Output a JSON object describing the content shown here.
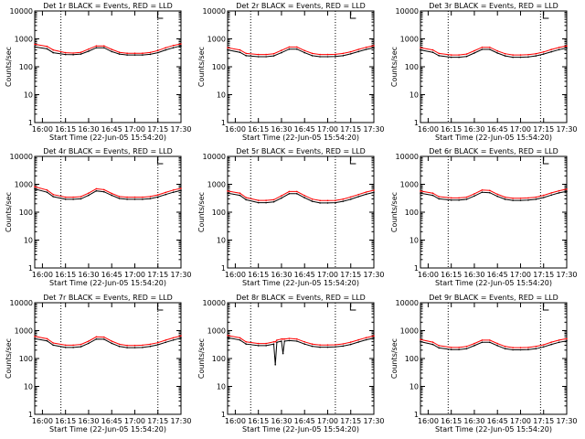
{
  "chart_data": [
    {
      "type": "line",
      "title": "Det 1r BLACK = Events, RED = LLD",
      "xlabel": "Start Time (22-Jun-05 15:54:20)",
      "ylabel": "Counts/sec",
      "xticks": [
        "16:00",
        "16:15",
        "16:30",
        "16:45",
        "17:00",
        "17:15",
        "17:30"
      ],
      "ylim": [
        1,
        10000
      ],
      "yscale": "log",
      "yticks": [
        "1",
        "10",
        "100",
        "1000",
        "10000"
      ],
      "vlines": [
        "16:12",
        "17:15"
      ],
      "x_min": [
        0,
        8,
        12,
        20,
        25,
        30,
        35,
        40,
        45,
        50,
        55,
        60,
        65,
        70,
        75,
        80,
        85,
        90,
        95
      ],
      "series": [
        {
          "name": "Events",
          "color": "#000000",
          "values": [
            520,
            440,
            320,
            275,
            270,
            285,
            360,
            480,
            480,
            350,
            285,
            265,
            265,
            265,
            280,
            320,
            400,
            480,
            560
          ]
        },
        {
          "name": "LLD",
          "color": "#ff0000",
          "values": [
            640,
            540,
            400,
            320,
            310,
            330,
            430,
            560,
            560,
            420,
            330,
            305,
            305,
            305,
            325,
            380,
            480,
            580,
            660
          ]
        }
      ]
    },
    {
      "type": "line",
      "title": "Det 2r BLACK = Events, RED = LLD",
      "xlabel": "Start Time (22-Jun-05 15:54:20)",
      "ylabel": "Counts/sec",
      "xticks": [
        "16:00",
        "16:15",
        "16:30",
        "16:45",
        "17:00",
        "17:15",
        "17:30"
      ],
      "ylim": [
        1,
        10000
      ],
      "yscale": "log",
      "yticks": [
        "1",
        "10",
        "100",
        "1000",
        "10000"
      ],
      "vlines": [
        "16:10",
        "17:05"
      ],
      "x_min": [
        0,
        8,
        12,
        20,
        25,
        30,
        35,
        40,
        45,
        50,
        55,
        60,
        65,
        70,
        75,
        80,
        85,
        90,
        95
      ],
      "series": [
        {
          "name": "Events",
          "color": "#000000",
          "values": [
            400,
            330,
            250,
            230,
            230,
            245,
            320,
            430,
            430,
            320,
            250,
            230,
            230,
            235,
            250,
            290,
            350,
            420,
            480
          ]
        },
        {
          "name": "LLD",
          "color": "#ff0000",
          "values": [
            480,
            400,
            300,
            275,
            275,
            295,
            385,
            510,
            510,
            380,
            300,
            275,
            275,
            280,
            300,
            345,
            420,
            500,
            570
          ]
        }
      ]
    },
    {
      "type": "line",
      "title": "Det 3r BLACK = Events, RED = LLD",
      "xlabel": "Start Time (22-Jun-05 15:54:20)",
      "ylabel": "Counts/sec",
      "xticks": [
        "16:00",
        "16:15",
        "16:30",
        "16:45",
        "17:00",
        "17:15",
        "17:30"
      ],
      "ylim": [
        1,
        10000
      ],
      "yscale": "log",
      "yticks": [
        "1",
        "10",
        "100",
        "1000",
        "10000"
      ],
      "vlines": [
        "16:13",
        "17:13"
      ],
      "x_min": [
        0,
        8,
        12,
        20,
        25,
        30,
        35,
        40,
        45,
        50,
        55,
        60,
        65,
        70,
        75,
        80,
        85,
        90,
        95
      ],
      "series": [
        {
          "name": "Events",
          "color": "#000000",
          "values": [
            400,
            330,
            250,
            220,
            220,
            235,
            310,
            420,
            420,
            310,
            245,
            220,
            220,
            225,
            245,
            285,
            345,
            410,
            470
          ]
        },
        {
          "name": "LLD",
          "color": "#ff0000",
          "values": [
            480,
            400,
            300,
            265,
            265,
            285,
            375,
            500,
            500,
            370,
            295,
            265,
            265,
            270,
            295,
            340,
            415,
            490,
            560
          ]
        }
      ]
    },
    {
      "type": "line",
      "title": "Det 4r BLACK = Events, RED = LLD",
      "xlabel": "Start Time (22-Jun-05 15:54:20)",
      "ylabel": "Counts/sec",
      "xticks": [
        "16:00",
        "16:15",
        "16:30",
        "16:45",
        "17:00",
        "17:15",
        "17:30"
      ],
      "ylim": [
        1,
        10000
      ],
      "yscale": "log",
      "yticks": [
        "1",
        "10",
        "100",
        "1000",
        "10000"
      ],
      "vlines": [
        "16:12",
        "17:15"
      ],
      "x_min": [
        0,
        8,
        12,
        20,
        25,
        30,
        35,
        40,
        45,
        50,
        55,
        60,
        65,
        70,
        75,
        80,
        85,
        90,
        95
      ],
      "series": [
        {
          "name": "Events",
          "color": "#000000",
          "values": [
            680,
            520,
            360,
            290,
            290,
            300,
            400,
            580,
            540,
            400,
            310,
            290,
            290,
            290,
            305,
            350,
            430,
            520,
            600
          ]
        },
        {
          "name": "LLD",
          "color": "#ff0000",
          "values": [
            820,
            620,
            430,
            345,
            345,
            360,
            480,
            690,
            640,
            470,
            365,
            345,
            345,
            345,
            365,
            415,
            510,
            620,
            710
          ]
        }
      ]
    },
    {
      "type": "line",
      "title": "Det 5r BLACK = Events, RED = LLD",
      "xlabel": "Start Time (22-Jun-05 15:54:20)",
      "ylabel": "Counts/sec",
      "xticks": [
        "16:00",
        "16:15",
        "16:30",
        "16:45",
        "17:00",
        "17:15",
        "17:30"
      ],
      "ylim": [
        1,
        10000
      ],
      "yscale": "log",
      "yticks": [
        "1",
        "10",
        "100",
        "1000",
        "10000"
      ],
      "vlines": [
        "16:10",
        "17:05"
      ],
      "x_min": [
        0,
        8,
        12,
        20,
        25,
        30,
        35,
        40,
        45,
        50,
        55,
        60,
        65,
        70,
        75,
        80,
        85,
        90,
        95
      ],
      "series": [
        {
          "name": "Events",
          "color": "#000000",
          "values": [
            480,
            400,
            280,
            220,
            220,
            235,
            320,
            460,
            460,
            330,
            245,
            215,
            215,
            220,
            245,
            290,
            360,
            440,
            510
          ]
        },
        {
          "name": "LLD",
          "color": "#ff0000",
          "values": [
            570,
            480,
            335,
            265,
            265,
            280,
            385,
            550,
            550,
            395,
            295,
            260,
            260,
            265,
            295,
            350,
            430,
            525,
            610
          ]
        }
      ]
    },
    {
      "type": "line",
      "title": "Det 6r BLACK = Events, RED = LLD",
      "xlabel": "Start Time (22-Jun-05 15:54:20)",
      "ylabel": "Counts/sec",
      "xticks": [
        "16:00",
        "16:15",
        "16:30",
        "16:45",
        "17:00",
        "17:15",
        "17:30"
      ],
      "ylim": [
        1,
        10000
      ],
      "yscale": "log",
      "yticks": [
        "1",
        "10",
        "100",
        "1000",
        "10000"
      ],
      "vlines": [
        "16:13",
        "17:13"
      ],
      "x_min": [
        0,
        8,
        12,
        20,
        25,
        30,
        35,
        40,
        45,
        50,
        55,
        60,
        65,
        70,
        75,
        80,
        85,
        90,
        95
      ],
      "series": [
        {
          "name": "Events",
          "color": "#000000",
          "values": [
            480,
            400,
            300,
            270,
            270,
            290,
            380,
            520,
            500,
            370,
            290,
            265,
            265,
            270,
            290,
            335,
            410,
            490,
            560
          ]
        },
        {
          "name": "LLD",
          "color": "#ff0000",
          "values": [
            570,
            480,
            360,
            325,
            325,
            345,
            455,
            620,
            600,
            440,
            345,
            315,
            315,
            325,
            345,
            400,
            490,
            585,
            670
          ]
        }
      ]
    },
    {
      "type": "line",
      "title": "Det 7r BLACK = Events, RED = LLD",
      "xlabel": "Start Time (22-Jun-05 15:54:20)",
      "ylabel": "Counts/sec",
      "xticks": [
        "16:00",
        "16:15",
        "16:30",
        "16:45",
        "17:00",
        "17:15",
        "17:30"
      ],
      "ylim": [
        1,
        10000
      ],
      "yscale": "log",
      "yticks": [
        "1",
        "10",
        "100",
        "1000",
        "10000"
      ],
      "vlines": [
        "16:12",
        "17:15"
      ],
      "x_min": [
        0,
        8,
        12,
        20,
        25,
        30,
        35,
        40,
        45,
        50,
        55,
        60,
        65,
        70,
        75,
        80,
        85,
        90,
        95
      ],
      "series": [
        {
          "name": "Events",
          "color": "#000000",
          "values": [
            520,
            430,
            300,
            250,
            250,
            265,
            350,
            500,
            490,
            350,
            270,
            245,
            245,
            250,
            270,
            310,
            380,
            460,
            540
          ]
        },
        {
          "name": "LLD",
          "color": "#ff0000",
          "values": [
            620,
            510,
            360,
            300,
            300,
            320,
            420,
            600,
            585,
            420,
            325,
            295,
            295,
            300,
            325,
            370,
            455,
            550,
            650
          ]
        }
      ]
    },
    {
      "type": "line",
      "title": "Det 8r BLACK = Events, RED = LLD",
      "xlabel": "Start Time (22-Jun-05 15:54:20)",
      "ylabel": "Counts/sec",
      "xticks": [
        "16:00",
        "16:15",
        "16:30",
        "16:45",
        "17:00",
        "17:15",
        "17:30"
      ],
      "ylim": [
        1,
        10000
      ],
      "yscale": "log",
      "yticks": [
        "1",
        "10",
        "100",
        "1000",
        "10000"
      ],
      "vlines": [
        "16:10",
        "17:05"
      ],
      "x_min": [
        0,
        8,
        12,
        20,
        25,
        30,
        31,
        32,
        35,
        36,
        37,
        40,
        45,
        50,
        55,
        60,
        65,
        70,
        75,
        80,
        85,
        90,
        95
      ],
      "series": [
        {
          "name": "Events",
          "color": "#000000",
          "values": [
            560,
            460,
            330,
            290,
            290,
            330,
            60,
            380,
            420,
            150,
            420,
            440,
            420,
            330,
            275,
            255,
            255,
            260,
            280,
            320,
            390,
            470,
            540
          ]
        },
        {
          "name": "LLD",
          "color": "#ff0000",
          "values": [
            670,
            550,
            395,
            345,
            345,
            395,
            395,
            455,
            500,
            500,
            500,
            525,
            500,
            395,
            330,
            305,
            305,
            310,
            335,
            385,
            465,
            560,
            645
          ]
        }
      ]
    },
    {
      "type": "line",
      "title": "Det 9r BLACK = Events, RED = LLD",
      "xlabel": "Start Time (22-Jun-05 15:54:20)",
      "ylabel": "Counts/sec",
      "xticks": [
        "16:00",
        "16:15",
        "16:30",
        "16:45",
        "17:00",
        "17:15",
        "17:30"
      ],
      "ylim": [
        1,
        10000
      ],
      "yscale": "log",
      "yticks": [
        "1",
        "10",
        "100",
        "1000",
        "10000"
      ],
      "vlines": [
        "16:13",
        "17:13"
      ],
      "x_min": [
        0,
        8,
        12,
        20,
        25,
        30,
        35,
        40,
        45,
        50,
        55,
        60,
        65,
        70,
        75,
        80,
        85,
        90,
        95
      ],
      "series": [
        {
          "name": "Events",
          "color": "#000000",
          "values": [
            400,
            320,
            240,
            210,
            210,
            225,
            290,
            380,
            380,
            290,
            225,
            205,
            205,
            210,
            225,
            260,
            320,
            380,
            430
          ]
        },
        {
          "name": "LLD",
          "color": "#ff0000",
          "values": [
            480,
            385,
            290,
            250,
            250,
            270,
            345,
            455,
            455,
            345,
            270,
            245,
            245,
            250,
            270,
            310,
            385,
            455,
            515
          ]
        }
      ]
    }
  ]
}
